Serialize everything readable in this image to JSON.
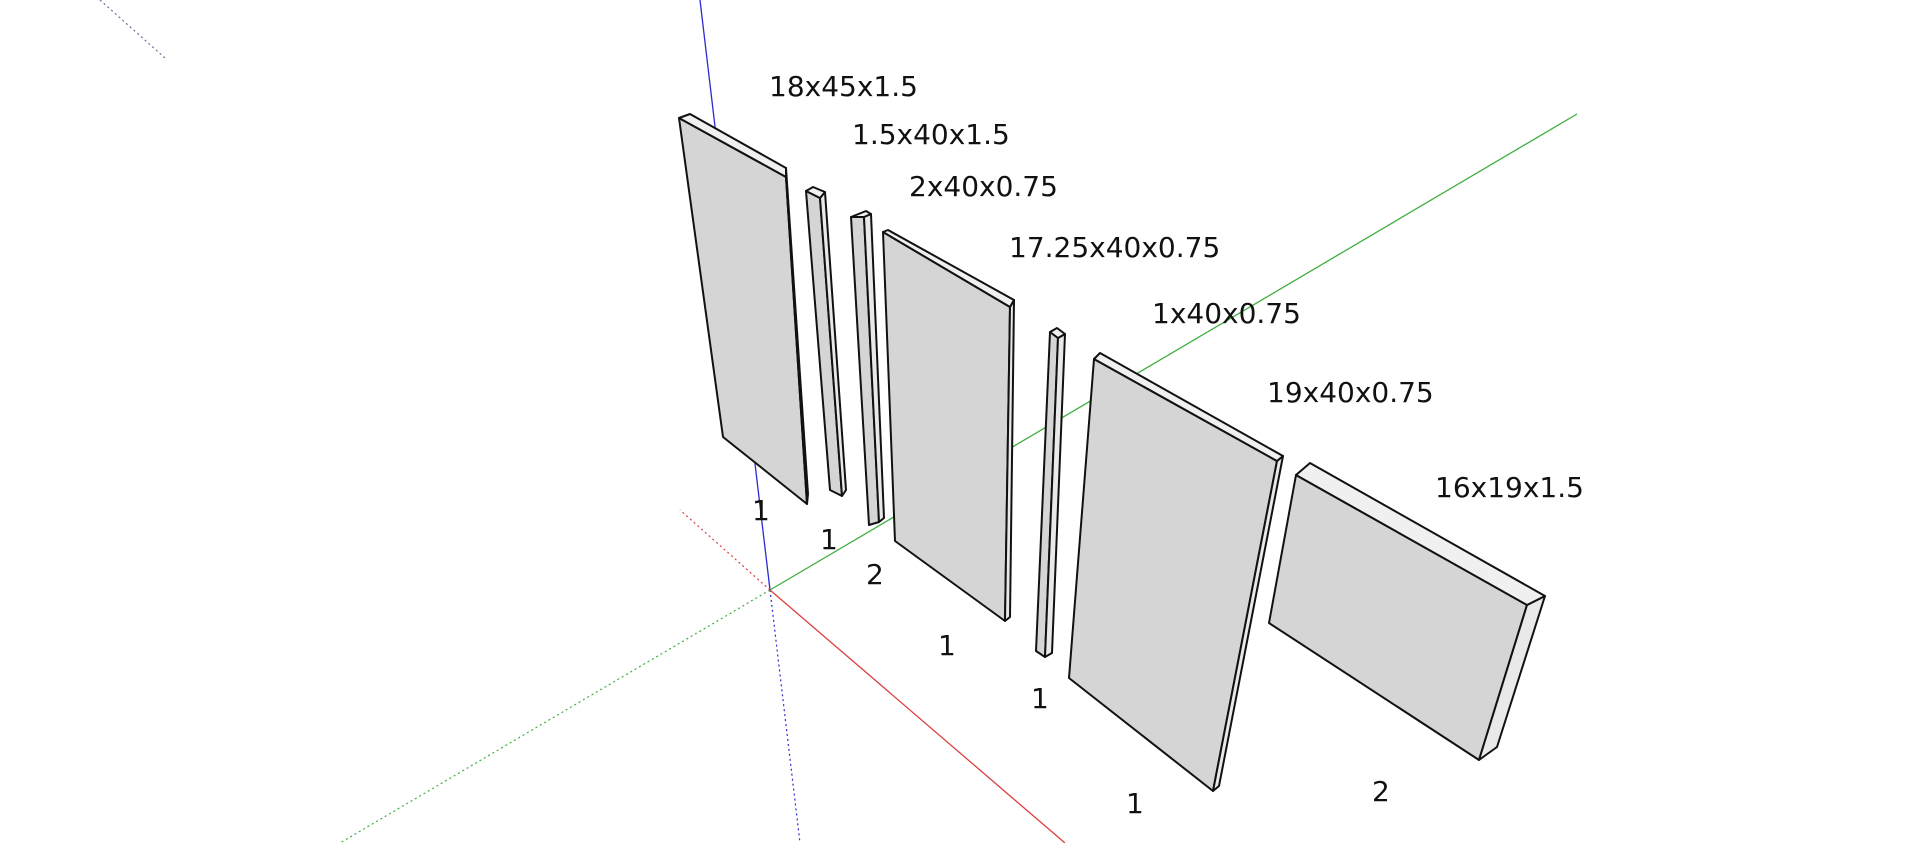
{
  "scene": {
    "axis_colors": {
      "x": "#d94040",
      "y": "#3fae3f",
      "z": "#2b2bd0"
    },
    "panel_fill": "#d5d5d5",
    "edge_color": "#111111"
  },
  "parts": [
    {
      "id": "p1",
      "dimensions": "18x45x1.5",
      "quantity": "1"
    },
    {
      "id": "p2",
      "dimensions": "1.5x40x1.5",
      "quantity": "1"
    },
    {
      "id": "p3",
      "dimensions": "2x40x0.75",
      "quantity": "2"
    },
    {
      "id": "p4",
      "dimensions": "17.25x40x0.75",
      "quantity": "1"
    },
    {
      "id": "p5",
      "dimensions": "1x40x0.75",
      "quantity": "1"
    },
    {
      "id": "p6",
      "dimensions": "19x40x0.75",
      "quantity": "1"
    },
    {
      "id": "p7",
      "dimensions": "16x19x1.5",
      "quantity": "2"
    }
  ]
}
